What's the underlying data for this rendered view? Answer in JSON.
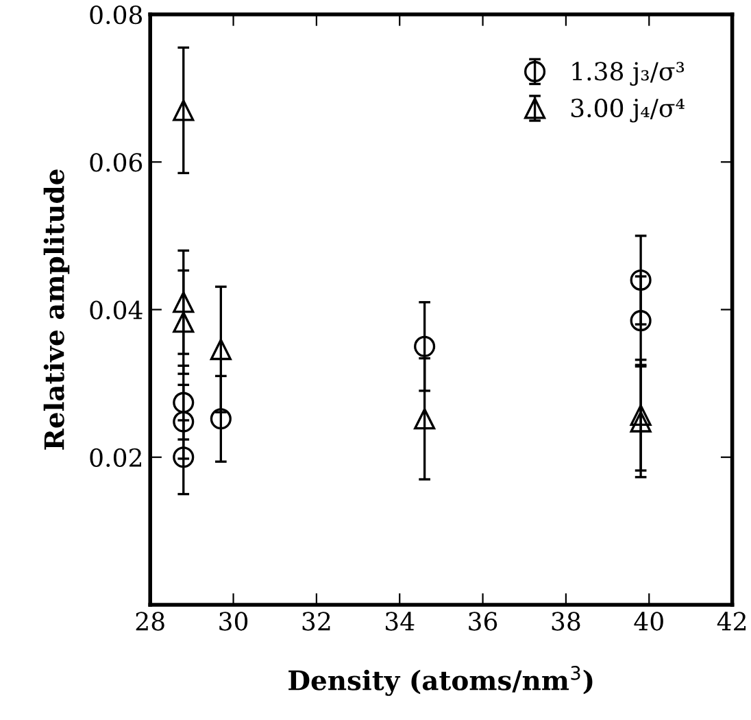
{
  "chart_data": {
    "type": "scatter",
    "xlabel": "Density (atoms/nm$^{3}$)",
    "ylabel": "Relative amplitude",
    "xlim": [
      28,
      42
    ],
    "xticks": [
      28,
      30,
      32,
      34,
      36,
      38,
      40,
      42
    ],
    "ylim": [
      0,
      0.08
    ],
    "yticks": [
      {
        "value": 0,
        "label": null
      },
      0.02,
      0.04,
      0.06,
      0.08
    ],
    "grid": false,
    "legend": "top right",
    "series": [
      {
        "name": "1.38 j₃/σ³",
        "color": "#000000",
        "marker": "circle",
        "x": [
          28.8,
          28.8,
          28.8,
          29.7,
          34.6,
          39.8,
          39.8
        ],
        "values": [
          0.0274,
          0.0248,
          0.02,
          0.0252,
          0.035,
          0.044,
          0.0385
        ],
        "errors": [
          0.005,
          0.005,
          0.005,
          0.0058,
          0.006,
          0.006,
          0.006
        ]
      },
      {
        "name": "3.00 j₄/σ⁴",
        "color": "#000000",
        "marker": "triangle",
        "x": [
          28.8,
          28.8,
          28.8,
          29.7,
          34.6,
          39.8,
          39.8
        ],
        "values": [
          0.067,
          0.041,
          0.0383,
          0.0346,
          0.0252,
          0.0257,
          0.0248
        ],
        "errors": [
          0.0085,
          0.007,
          0.007,
          0.0085,
          0.0082,
          0.0075,
          0.0075
        ]
      }
    ]
  }
}
